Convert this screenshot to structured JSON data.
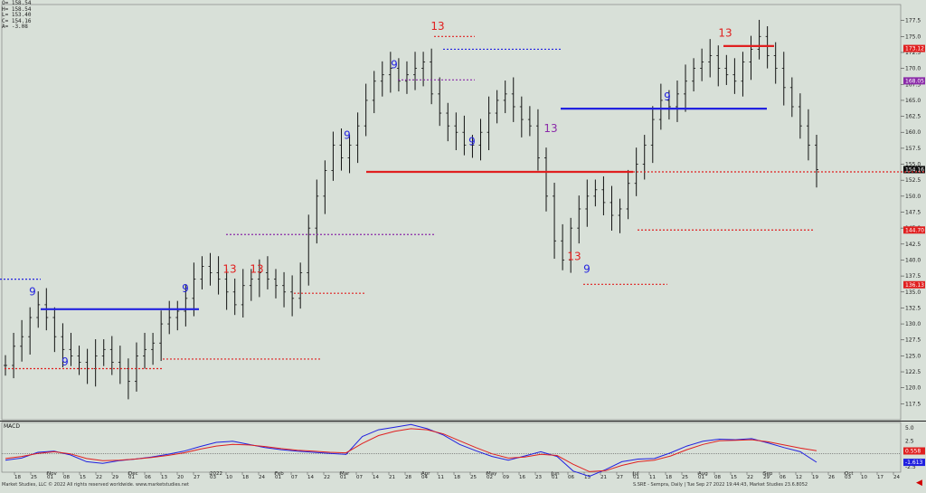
{
  "ohlc_box": [
    "O= 158.54",
    "H= 158.54",
    "L= 153.40",
    "C= 154.16",
    "A= -3.08"
  ],
  "footer": {
    "left": "Market Studies, LLC © 2022 All rights reserved worldwide.  www.marketstudies.net",
    "right": "S.SRE - Sempra, Daily | Tue Sep 27 2022 19:44:43, Market Studies 23.6.8052"
  },
  "colors": {
    "setup_blue": "#2323e0",
    "count_red": "#e02020",
    "count_purple": "#8a2aa8",
    "bar": "#111111",
    "macd": "#2020e0",
    "signal": "#e02020",
    "bg": "#d8e0d8"
  },
  "chart_data": [
    {
      "type": "ohlc",
      "title": "",
      "ylim": [
        115,
        180
      ],
      "y_ticks": [
        117.5,
        120.0,
        122.5,
        125.0,
        127.5,
        130.0,
        132.5,
        135.0,
        137.5,
        140.0,
        142.5,
        145.0,
        147.5,
        150.0,
        152.5,
        155.0,
        157.5,
        160.0,
        162.5,
        165.0,
        167.5,
        170.0,
        172.5,
        175.0,
        177.5
      ],
      "x_tick_labels": [
        "18",
        "25",
        "01",
        "08",
        "15",
        "22",
        "29",
        "01",
        "06",
        "13",
        "20",
        "27",
        "03",
        "10",
        "18",
        "24",
        "01",
        "07",
        "14",
        "22",
        "01",
        "07",
        "14",
        "21",
        "28",
        "04",
        "11",
        "18",
        "25",
        "02",
        "09",
        "16",
        "23",
        "01",
        "06",
        "13",
        "21",
        "27",
        "01",
        "11",
        "18",
        "25",
        "01",
        "08",
        "15",
        "22",
        "29",
        "06",
        "12",
        "19",
        "26",
        "03",
        "10",
        "17",
        "24"
      ],
      "month_labels": [
        "Nov",
        "Dec",
        "2022",
        "Feb",
        "Mar",
        "Apr",
        "May",
        "Jun",
        "Jul",
        "Aug",
        "Sep",
        "Oct"
      ],
      "price_tags": [
        {
          "value": "173.12",
          "color": "#e02020"
        },
        {
          "value": "168.05",
          "color": "#8a2aa8"
        },
        {
          "value": "154.16",
          "color": "#111111"
        },
        {
          "value": "144.70",
          "color": "#e02020"
        },
        {
          "value": "136.13",
          "color": "#e02020"
        }
      ],
      "closes": [
        123.5,
        126.5,
        128,
        131,
        133,
        131,
        128,
        126,
        125,
        124,
        123,
        125,
        126,
        124,
        123,
        121,
        125,
        126,
        127,
        130,
        131,
        132,
        134,
        137,
        139,
        138,
        137,
        135,
        133,
        136,
        137,
        138,
        137,
        136,
        135,
        134,
        138,
        145,
        150,
        154,
        158,
        156,
        158,
        161,
        165,
        168,
        169,
        170,
        168,
        169,
        170,
        171,
        166,
        163,
        161,
        160,
        158,
        158,
        160,
        163,
        165,
        166,
        164,
        162,
        161,
        156,
        150,
        143,
        140,
        145,
        148,
        150,
        151,
        149,
        147,
        148,
        152,
        155,
        158,
        162,
        165,
        164,
        166,
        168,
        170,
        171,
        172,
        170,
        169,
        168,
        171,
        173,
        175,
        172,
        170,
        167,
        164,
        161,
        158,
        154.16
      ],
      "setup_levels": [
        {
          "value": 132.3,
          "color": "#2323e0"
        },
        {
          "value": 153.8,
          "color": "#e02020"
        },
        {
          "value": 163.7,
          "color": "#2323e0"
        },
        {
          "value": 173.5,
          "color": "#e02020"
        }
      ],
      "count_labels": [
        {
          "text": "9",
          "color": "#2323e0"
        },
        {
          "text": "9",
          "color": "#2323e0"
        },
        {
          "text": "9",
          "color": "#2323e0"
        },
        {
          "text": "13",
          "color": "#e02020"
        },
        {
          "text": "13",
          "color": "#e02020"
        },
        {
          "text": "9",
          "color": "#2323e0"
        },
        {
          "text": "9",
          "color": "#2323e0"
        },
        {
          "text": "13",
          "color": "#e02020"
        },
        {
          "text": "9",
          "color": "#2323e0"
        },
        {
          "text": "13",
          "color": "#8a2aa8"
        },
        {
          "text": "13",
          "color": "#e02020"
        },
        {
          "text": "9",
          "color": "#2323e0"
        },
        {
          "text": "9",
          "color": "#2323e0"
        },
        {
          "text": "13",
          "color": "#e02020"
        }
      ]
    },
    {
      "type": "line",
      "title": "MACD",
      "ylim": [
        -3.5,
        6
      ],
      "y_ticks": [
        5.0,
        2.5,
        -2.5
      ],
      "value_tags": [
        {
          "value": "0.558",
          "color": "#e02020"
        },
        {
          "value": "-1.613",
          "color": "#2020e0"
        }
      ],
      "series": [
        {
          "name": "",
          "color": "#2020e0",
          "values": [
            -1.2,
            -0.8,
            0.3,
            0.5,
            -0.2,
            -1.5,
            -1.8,
            -1.3,
            -1.0,
            -0.6,
            -0.1,
            0.5,
            1.4,
            2.2,
            2.4,
            1.8,
            1.2,
            0.8,
            0.5,
            0.3,
            0.1,
            -0.1,
            3.3,
            4.6,
            5.1,
            5.6,
            4.8,
            3.6,
            1.8,
            0.6,
            -0.5,
            -1.2,
            -0.4,
            0.4,
            -0.5,
            -3.3,
            -4.3,
            -3.0,
            -1.5,
            -1.0,
            -0.9,
            0.2,
            1.5,
            2.4,
            2.8,
            2.7,
            2.9,
            2.1,
            1.2,
            0.4,
            -1.6
          ]
        },
        {
          "name": "",
          "color": "#e02020",
          "values": [
            -0.9,
            -0.5,
            0.1,
            0.4,
            0.0,
            -0.9,
            -1.3,
            -1.2,
            -1.0,
            -0.7,
            -0.3,
            0.2,
            0.9,
            1.5,
            1.8,
            1.7,
            1.4,
            1.0,
            0.7,
            0.5,
            0.3,
            0.2,
            2.0,
            3.5,
            4.3,
            4.8,
            4.6,
            3.8,
            2.5,
            1.2,
            0.0,
            -0.8,
            -0.6,
            -0.1,
            -0.3,
            -2.0,
            -3.4,
            -3.2,
            -2.2,
            -1.5,
            -1.2,
            -0.4,
            0.8,
            1.8,
            2.5,
            2.6,
            2.7,
            2.3,
            1.7,
            1.1,
            0.6
          ]
        }
      ]
    }
  ]
}
